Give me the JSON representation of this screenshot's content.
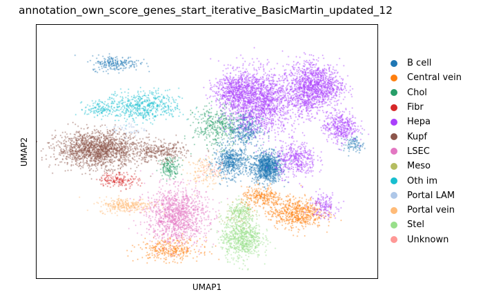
{
  "chart_data": {
    "type": "scatter",
    "title": "annotation_own_score_genes_start_iterative_BasicMartin_updated_12",
    "xlabel": "UMAP1",
    "ylabel": "UMAP2",
    "xlim": [
      0,
      100
    ],
    "ylim": [
      0,
      100
    ],
    "grid": false,
    "legend_position": "right",
    "series": [
      {
        "name": "B cell",
        "color": "#1f77b4",
        "clusters": [
          {
            "x": [
              63,
              72
            ],
            "y": [
              38,
              50
            ],
            "n": 900
          },
          {
            "x": [
              52,
              62
            ],
            "y": [
              40,
              52
            ],
            "n": 500
          },
          {
            "x": [
              56,
              66
            ],
            "y": [
              52,
              66
            ],
            "n": 350
          },
          {
            "x": [
              16,
              30
            ],
            "y": [
              82,
              88
            ],
            "n": 220
          },
          {
            "x": [
              90,
              96
            ],
            "y": [
              50,
              56
            ],
            "n": 90
          }
        ]
      },
      {
        "name": "Central vein",
        "color": "#ff7f0e",
        "clusters": [
          {
            "x": [
              68,
              84
            ],
            "y": [
              20,
              32
            ],
            "n": 600
          },
          {
            "x": [
              60,
              72
            ],
            "y": [
              28,
              36
            ],
            "n": 250
          },
          {
            "x": [
              30,
              48
            ],
            "y": [
              7,
              16
            ],
            "n": 320
          }
        ]
      },
      {
        "name": "Chol",
        "color": "#279e68",
        "clusters": [
          {
            "x": [
              46,
              60
            ],
            "y": [
              52,
              68
            ],
            "n": 380
          },
          {
            "x": [
              36,
              42
            ],
            "y": [
              40,
              48
            ],
            "n": 160
          }
        ]
      },
      {
        "name": "Fibr",
        "color": "#d62728",
        "clusters": [
          {
            "x": [
              18,
              30
            ],
            "y": [
              36,
              42
            ],
            "n": 160
          }
        ]
      },
      {
        "name": "Hepa",
        "color": "#aa40fc",
        "clusters": [
          {
            "x": [
              56,
              76
            ],
            "y": [
              58,
              82
            ],
            "n": 1500
          },
          {
            "x": [
              52,
              64
            ],
            "y": [
              66,
              82
            ],
            "n": 600
          },
          {
            "x": [
              74,
              84
            ],
            "y": [
              64,
              86
            ],
            "n": 700
          },
          {
            "x": [
              78,
              90
            ],
            "y": [
              68,
              84
            ],
            "n": 600
          },
          {
            "x": [
              84,
              94
            ],
            "y": [
              54,
              66
            ],
            "n": 400
          },
          {
            "x": [
              70,
              82
            ],
            "y": [
              40,
              54
            ],
            "n": 400
          },
          {
            "x": [
              80,
              88
            ],
            "y": [
              24,
              34
            ],
            "n": 150
          }
        ]
      },
      {
        "name": "Kupf",
        "color": "#8c564b",
        "clusters": [
          {
            "x": [
              6,
              30
            ],
            "y": [
              44,
              58
            ],
            "n": 1600
          },
          {
            "x": [
              28,
              44
            ],
            "y": [
              46,
              54
            ],
            "n": 300
          }
        ]
      },
      {
        "name": "LSEC",
        "color": "#e377c2",
        "clusters": [
          {
            "x": [
              32,
              50
            ],
            "y": [
              14,
              36
            ],
            "n": 1200
          }
        ]
      },
      {
        "name": "Meso",
        "color": "#b5bd61",
        "clusters": [
          {
            "x": [
              54,
              64
            ],
            "y": [
              20,
              30
            ],
            "n": 80
          }
        ]
      },
      {
        "name": "Oth im",
        "color": "#17becf",
        "clusters": [
          {
            "x": [
              20,
              42
            ],
            "y": [
              62,
              74
            ],
            "n": 550
          },
          {
            "x": [
              14,
              22
            ],
            "y": [
              64,
              70
            ],
            "n": 100
          }
        ]
      },
      {
        "name": "Portal LAM",
        "color": "#aec7e8",
        "clusters": [
          {
            "x": [
              22,
              32
            ],
            "y": [
              56,
              62
            ],
            "n": 50
          }
        ]
      },
      {
        "name": "Portal vein",
        "color": "#ffbb78",
        "clusters": [
          {
            "x": [
              18,
              34
            ],
            "y": [
              26,
              32
            ],
            "n": 280
          },
          {
            "x": [
              44,
              54
            ],
            "y": [
              36,
              48
            ],
            "n": 120
          }
        ]
      },
      {
        "name": "Stel",
        "color": "#98df8a",
        "clusters": [
          {
            "x": [
              54,
              66
            ],
            "y": [
              8,
              24
            ],
            "n": 700
          },
          {
            "x": [
              56,
              64
            ],
            "y": [
              22,
              30
            ],
            "n": 150
          }
        ]
      },
      {
        "name": "Unknown",
        "color": "#ff9896",
        "clusters": [
          {
            "x": [
              46,
              56
            ],
            "y": [
              40,
              46
            ],
            "n": 30
          }
        ]
      }
    ]
  }
}
